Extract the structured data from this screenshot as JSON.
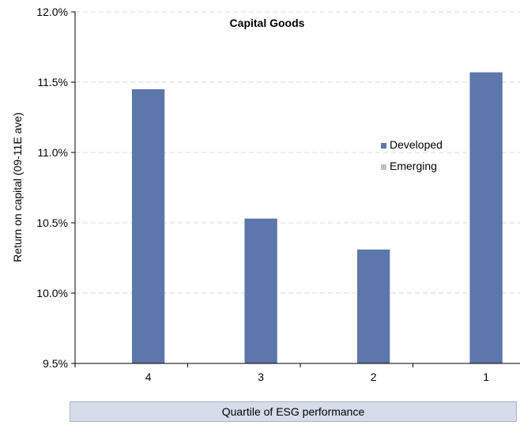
{
  "chart_data": {
    "type": "bar",
    "title": "Capital Goods",
    "xlabel": "Quartile of ESG performance",
    "ylabel": "Return on capital (09-11E ave)",
    "categories": [
      "4",
      "3",
      "2",
      "1"
    ],
    "series": [
      {
        "name": "Developed",
        "color": "#5d76ab",
        "values": [
          11.45,
          10.53,
          10.31,
          11.57
        ]
      },
      {
        "name": "Emerging",
        "color": "#c0c0c0",
        "values": [
          null,
          null,
          null,
          null
        ]
      }
    ],
    "ylim": [
      9.5,
      12.0
    ],
    "yticks": [
      9.5,
      10.0,
      10.5,
      11.0,
      11.5,
      12.0
    ],
    "ytick_labels": [
      "9.5%",
      "10.0%",
      "10.5%",
      "11.0%",
      "11.5%",
      "12.0%"
    ],
    "grid": true,
    "legend_position": "right"
  }
}
